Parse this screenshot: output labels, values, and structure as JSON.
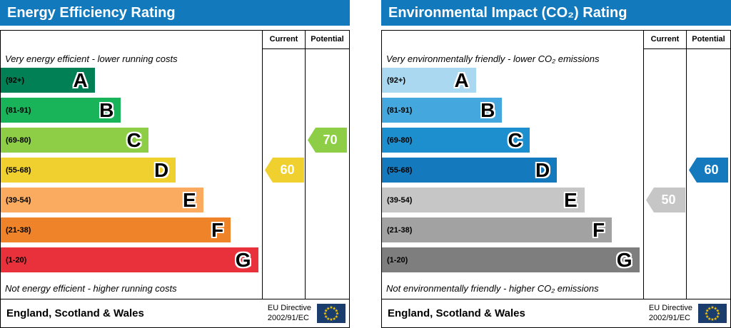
{
  "eu_flag": {
    "bg": "#1b3d6d",
    "star": "#ffcc00"
  },
  "panels": [
    {
      "title": "Energy Efficiency Rating",
      "header_color": "#1279bd",
      "col_current": "Current",
      "col_potential": "Potential",
      "caption_top": "Very energy efficient - lower running costs",
      "caption_bottom": "Not energy efficient - higher running costs",
      "bands": [
        {
          "range": "(92+)",
          "letter": "A",
          "color": "#008054",
          "width_pct": 36
        },
        {
          "range": "(81-91)",
          "letter": "B",
          "color": "#19b459",
          "width_pct": 46
        },
        {
          "range": "(69-80)",
          "letter": "C",
          "color": "#8dce46",
          "width_pct": 56.5
        },
        {
          "range": "(55-68)",
          "letter": "D",
          "color": "#f0d02e",
          "width_pct": 67
        },
        {
          "range": "(39-54)",
          "letter": "E",
          "color": "#fbab60",
          "width_pct": 77.5
        },
        {
          "range": "(21-38)",
          "letter": "F",
          "color": "#ee8329",
          "width_pct": 88
        },
        {
          "range": "(1-20)",
          "letter": "G",
          "color": "#e9313c",
          "width_pct": 98.5
        }
      ],
      "current": {
        "value": "60",
        "band_index": 3,
        "color": "#f0d02e",
        "text_color": "#ffffff"
      },
      "potential": {
        "value": "70",
        "band_index": 2,
        "color": "#8dce46",
        "text_color": "#ffffff"
      },
      "footer_region": "England, Scotland & Wales",
      "directive_line1": "EU Directive",
      "directive_line2": "2002/91/EC"
    },
    {
      "title": "Environmental Impact (CO₂) Rating",
      "header_color": "#1279bd",
      "col_current": "Current",
      "col_potential": "Potential",
      "caption_top": "Very environmentally friendly - lower CO₂ emissions",
      "caption_bottom": "Not environmentally friendly - higher CO₂ emissions",
      "bands": [
        {
          "range": "(92+)",
          "letter": "A",
          "color": "#a9d8f0",
          "width_pct": 36
        },
        {
          "range": "(81-91)",
          "letter": "B",
          "color": "#44a8de",
          "width_pct": 46
        },
        {
          "range": "(69-80)",
          "letter": "C",
          "color": "#1e8fce",
          "width_pct": 56.5
        },
        {
          "range": "(55-68)",
          "letter": "D",
          "color": "#1579bd",
          "width_pct": 67
        },
        {
          "range": "(39-54)",
          "letter": "E",
          "color": "#c6c6c6",
          "width_pct": 77.5
        },
        {
          "range": "(21-38)",
          "letter": "F",
          "color": "#a2a2a2",
          "width_pct": 88
        },
        {
          "range": "(1-20)",
          "letter": "G",
          "color": "#7e7e7e",
          "width_pct": 98.5
        }
      ],
      "current": {
        "value": "50",
        "band_index": 4,
        "color": "#c6c6c6",
        "text_color": "#ffffff"
      },
      "potential": {
        "value": "60",
        "band_index": 3,
        "color": "#1579bd",
        "text_color": "#ffffff"
      },
      "footer_region": "England, Scotland & Wales",
      "directive_line1": "EU Directive",
      "directive_line2": "2002/91/EC"
    }
  ],
  "chart_data": [
    {
      "type": "bar",
      "title": "Energy Efficiency Rating",
      "categories": [
        "A (92+)",
        "B (81-91)",
        "C (69-80)",
        "D (55-68)",
        "E (39-54)",
        "F (21-38)",
        "G (1-20)"
      ],
      "current": 60,
      "current_band": "D",
      "potential": 70,
      "potential_band": "C",
      "top_note": "Very energy efficient - lower running costs",
      "bottom_note": "Not energy efficient - higher running costs",
      "footer": "England, Scotland & Wales",
      "directive": "EU Directive 2002/91/EC"
    },
    {
      "type": "bar",
      "title": "Environmental Impact (CO₂) Rating",
      "categories": [
        "A (92+)",
        "B (81-91)",
        "C (69-80)",
        "D (55-68)",
        "E (39-54)",
        "F (21-38)",
        "G (1-20)"
      ],
      "current": 50,
      "current_band": "E",
      "potential": 60,
      "potential_band": "D",
      "top_note": "Very environmentally friendly - lower CO₂ emissions",
      "bottom_note": "Not environmentally friendly - higher CO₂ emissions",
      "footer": "England, Scotland & Wales",
      "directive": "EU Directive 2002/91/EC"
    }
  ]
}
